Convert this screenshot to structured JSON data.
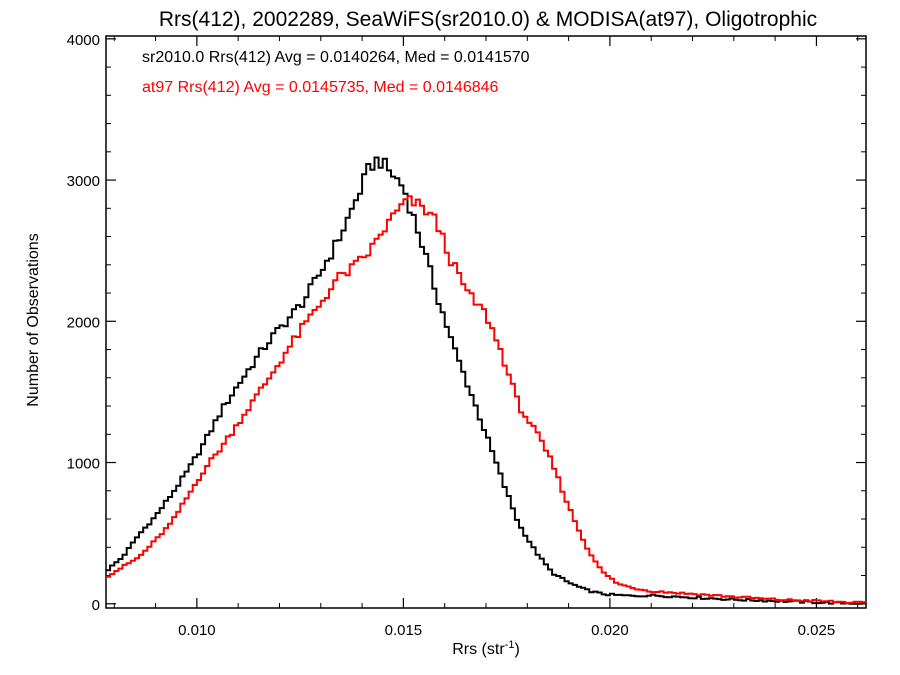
{
  "chart_data": {
    "type": "line",
    "title": "Rrs(412), 2002289, SeaWiFS(sr2010.0) & MODISA(at97), Oligotrophic",
    "xlabel_base": "Rrs (str",
    "xlabel_sup": "-1",
    "xlabel_tail": ")",
    "ylabel": "Number of Observations",
    "xlim": [
      0.0078,
      0.0262
    ],
    "ylim": [
      -30,
      4020
    ],
    "xticks": [
      0.01,
      0.015,
      0.02,
      0.025
    ],
    "xtick_labels": [
      "0.010",
      "0.015",
      "0.020",
      "0.025"
    ],
    "yticks": [
      0,
      1000,
      2000,
      3000,
      4000
    ],
    "ytick_labels": [
      "0",
      "1000",
      "2000",
      "3000",
      "4000"
    ],
    "legend_placement": "top-left",
    "grid": false,
    "series": [
      {
        "name": "sr2010.0",
        "legend": "sr2010.0 Rrs(412) Avg = 0.0140264, Med = 0.0141570",
        "color": "#000000",
        "x": [
          0.0078,
          0.0082,
          0.0086,
          0.009,
          0.0094,
          0.0098,
          0.0102,
          0.0106,
          0.011,
          0.0114,
          0.0118,
          0.0122,
          0.0126,
          0.013,
          0.0134,
          0.0138,
          0.0142,
          0.0144,
          0.0146,
          0.0148,
          0.015,
          0.0154,
          0.0158,
          0.0162,
          0.0166,
          0.017,
          0.0174,
          0.0178,
          0.0182,
          0.0186,
          0.019,
          0.0194,
          0.0198,
          0.0202,
          0.0206,
          0.021,
          0.022,
          0.023,
          0.024,
          0.025,
          0.0262
        ],
        "y": [
          230,
          330,
          490,
          620,
          780,
          950,
          1150,
          1370,
          1550,
          1720,
          1880,
          2010,
          2150,
          2350,
          2560,
          2820,
          3100,
          3150,
          3080,
          3020,
          2950,
          2600,
          2200,
          1830,
          1520,
          1200,
          870,
          560,
          370,
          220,
          150,
          100,
          70,
          60,
          55,
          60,
          45,
          30,
          20,
          10,
          0
        ]
      },
      {
        "name": "at97",
        "legend": "at97 Rrs(412) Avg = 0.0145735, Med = 0.0146846",
        "color": "#ff0000",
        "x": [
          0.0078,
          0.0082,
          0.0086,
          0.009,
          0.0094,
          0.0098,
          0.0102,
          0.0106,
          0.011,
          0.0114,
          0.0118,
          0.0122,
          0.0126,
          0.013,
          0.0134,
          0.0138,
          0.0142,
          0.0146,
          0.015,
          0.0152,
          0.0154,
          0.0156,
          0.0158,
          0.0162,
          0.0166,
          0.017,
          0.0174,
          0.0178,
          0.0182,
          0.0186,
          0.019,
          0.0194,
          0.0198,
          0.0202,
          0.0206,
          0.021,
          0.022,
          0.023,
          0.024,
          0.025,
          0.0262
        ],
        "y": [
          190,
          260,
          330,
          450,
          580,
          770,
          960,
          1110,
          1280,
          1450,
          1620,
          1800,
          1970,
          2130,
          2300,
          2380,
          2500,
          2680,
          2830,
          2850,
          2810,
          2780,
          2700,
          2400,
          2180,
          2050,
          1760,
          1400,
          1220,
          1000,
          690,
          420,
          230,
          140,
          110,
          90,
          70,
          50,
          30,
          20,
          5
        ]
      }
    ]
  }
}
